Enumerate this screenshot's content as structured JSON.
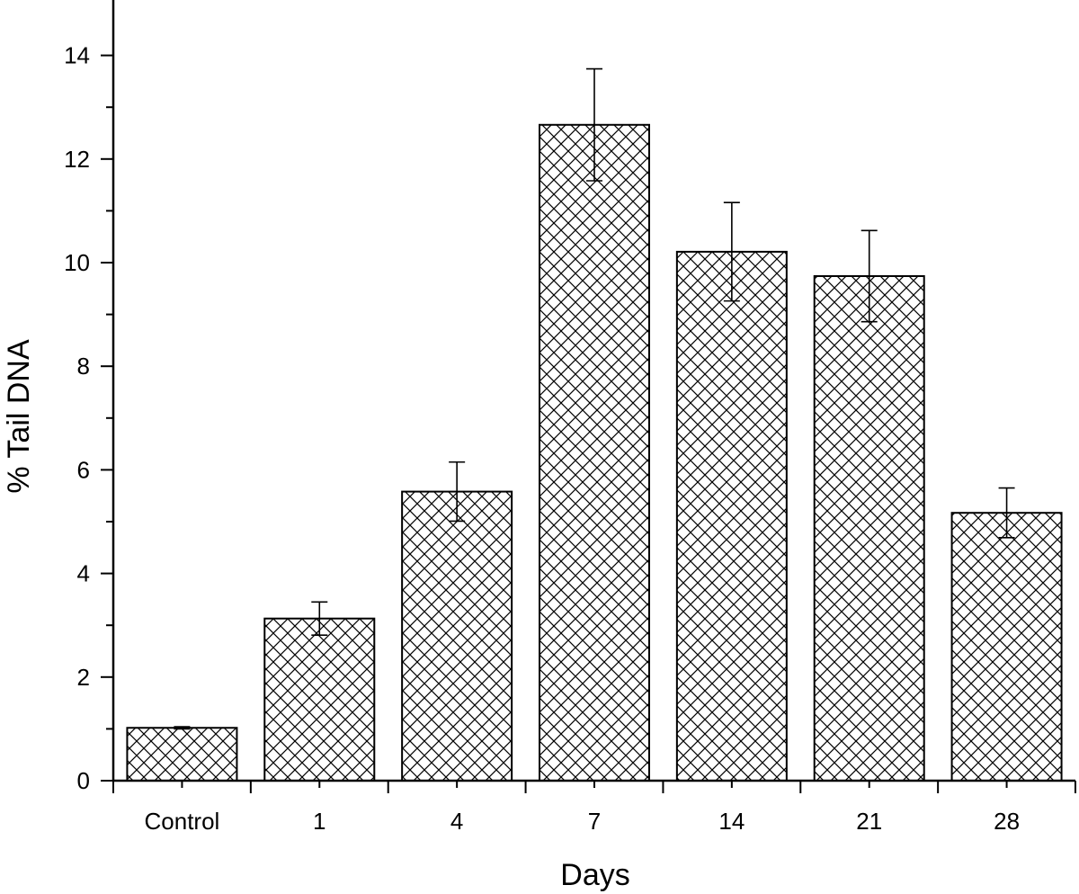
{
  "chart_data": {
    "type": "bar",
    "categories": [
      "Control",
      "1",
      "4",
      "7",
      "14",
      "21",
      "28"
    ],
    "values": [
      1.02,
      3.13,
      5.58,
      12.66,
      10.21,
      9.74,
      5.17
    ],
    "errors": [
      0.02,
      0.32,
      0.57,
      1.08,
      0.95,
      0.88,
      0.48
    ],
    "xlabel": "Days",
    "ylabel": "% Tail DNA",
    "ylim": [
      0,
      15
    ],
    "yticks": [
      0,
      2,
      4,
      6,
      8,
      10,
      12,
      14
    ],
    "bar_fill": "crosshatch",
    "bar_color": "#ffffff",
    "line_color": "#000000",
    "grid": false,
    "legend": "none"
  }
}
